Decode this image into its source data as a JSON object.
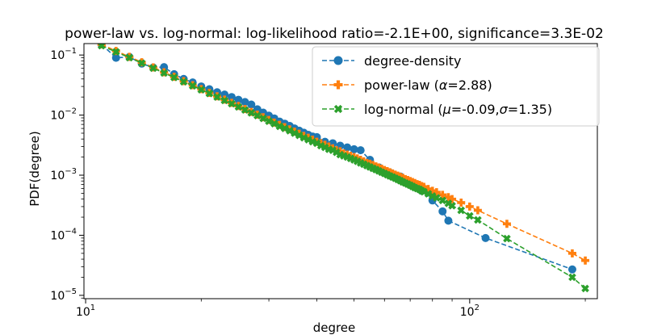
{
  "chart_data": {
    "type": "line",
    "title": "power-law vs. log-normal: log-likelihood ratio=-2.1E+00, significance=3.3E-02",
    "xlabel": "degree",
    "ylabel": "PDF(degree)",
    "xscale": "log",
    "yscale": "log",
    "xlim": [
      9.9,
      215
    ],
    "ylim": [
      8.8e-06,
      0.155
    ],
    "x_ticks": [
      {
        "value": 10,
        "base": "10",
        "exp": "1"
      },
      {
        "value": 100,
        "base": "10",
        "exp": "2"
      }
    ],
    "y_ticks": [
      {
        "value": 0.1,
        "base": "10",
        "exp": "−1"
      },
      {
        "value": 0.01,
        "base": "10",
        "exp": "−2"
      },
      {
        "value": 0.001,
        "base": "10",
        "exp": "−3"
      },
      {
        "value": 0.0001,
        "base": "10",
        "exp": "−4"
      },
      {
        "value": 1e-05,
        "base": "10",
        "exp": "−5"
      }
    ],
    "legend_position": "top-right",
    "series": [
      {
        "name": "degree-density",
        "legend_label": "degree-density",
        "color": "#1f77b4",
        "marker": "circle",
        "x": [
          11,
          12,
          13,
          14,
          15,
          16,
          17,
          18,
          19,
          20,
          21,
          22,
          23,
          24,
          25,
          26,
          27,
          28,
          29,
          30,
          31,
          32,
          33,
          34,
          35,
          36,
          37,
          38,
          39,
          40,
          42,
          44,
          46,
          48,
          50,
          52,
          55,
          58,
          62,
          66,
          70,
          75,
          80,
          85,
          88,
          110,
          185
        ],
        "y": [
          0.15,
          0.09,
          0.093,
          0.072,
          0.062,
          0.063,
          0.048,
          0.04,
          0.035,
          0.03,
          0.027,
          0.024,
          0.022,
          0.02,
          0.018,
          0.0165,
          0.015,
          0.0125,
          0.011,
          0.0098,
          0.0088,
          0.0078,
          0.0072,
          0.0066,
          0.006,
          0.0055,
          0.0051,
          0.0047,
          0.0044,
          0.0043,
          0.0036,
          0.0034,
          0.0031,
          0.0029,
          0.0027,
          0.0026,
          0.0018,
          0.00135,
          0.0011,
          0.00095,
          0.0007,
          0.00055,
          0.00038,
          0.00025,
          0.000175,
          9e-05,
          2.7e-05
        ]
      },
      {
        "name": "power-law",
        "legend_label": "power-law (",
        "legend_symbol": "α",
        "legend_value": "=2.88)",
        "color": "#ff7f0e",
        "marker": "plus",
        "x": [
          11,
          12,
          13,
          14,
          15,
          16,
          17,
          18,
          19,
          20,
          21,
          22,
          23,
          24,
          25,
          26,
          27,
          28,
          29,
          30,
          31,
          32,
          33,
          34,
          35,
          36,
          37,
          38,
          39,
          40,
          41,
          42,
          43,
          44,
          45,
          46,
          47,
          48,
          49,
          50,
          51,
          52,
          53,
          54,
          55,
          56,
          57,
          58,
          59,
          60,
          61,
          62,
          63,
          64,
          65,
          66,
          67,
          68,
          69,
          70,
          71,
          72,
          73,
          74,
          75,
          76,
          78,
          80,
          82,
          85,
          88,
          90,
          95,
          100,
          105,
          125,
          185,
          200
        ],
        "y": [
          0.15,
          0.117,
          0.0935,
          0.0757,
          0.0622,
          0.0517,
          0.0434,
          0.0368,
          0.0315,
          0.0271,
          0.0235,
          0.0206,
          0.0181,
          0.016,
          0.0142,
          0.0126,
          0.0113,
          0.0102,
          0.0092,
          0.0083,
          0.0075,
          0.0069,
          0.0063,
          0.0058,
          0.0053,
          0.0049,
          0.0045,
          0.0042,
          0.0039,
          0.0036,
          0.0034,
          0.0032,
          0.003,
          0.0028,
          0.0026,
          0.0025,
          0.0023,
          0.0022,
          0.0021,
          0.002,
          0.0019,
          0.0018,
          0.0017,
          0.0016,
          0.00155,
          0.00148,
          0.0014,
          0.00134,
          0.00128,
          0.00122,
          0.00117,
          0.00112,
          0.00107,
          0.00102,
          0.00098,
          0.00094,
          0.0009,
          0.00086,
          0.00083,
          0.0008,
          0.00077,
          0.00074,
          0.00071,
          0.00069,
          0.00066,
          0.00064,
          0.00059,
          0.00055,
          0.00052,
          0.00047,
          0.00043,
          0.0004,
          0.00035,
          0.0003,
          0.00026,
          0.000155,
          5e-05,
          3.8e-05
        ]
      },
      {
        "name": "log-normal",
        "legend_label": "log-normal (",
        "legend_symbol_1": "μ",
        "legend_value_1": "=-0.09,",
        "legend_symbol_2": "σ",
        "legend_value_2": "=1.35)",
        "color": "#2ca02c",
        "marker": "x",
        "x": [
          11,
          12,
          13,
          14,
          15,
          16,
          17,
          18,
          19,
          20,
          21,
          22,
          23,
          24,
          25,
          26,
          27,
          28,
          29,
          30,
          31,
          32,
          33,
          34,
          35,
          36,
          37,
          38,
          39,
          40,
          41,
          42,
          43,
          44,
          45,
          46,
          47,
          48,
          49,
          50,
          51,
          52,
          53,
          54,
          55,
          56,
          57,
          58,
          59,
          60,
          61,
          62,
          63,
          64,
          65,
          66,
          67,
          68,
          69,
          70,
          71,
          72,
          73,
          74,
          75,
          76,
          78,
          80,
          82,
          85,
          88,
          90,
          95,
          100,
          105,
          125,
          185,
          200
        ],
        "y": [
          0.143,
          0.113,
          0.0904,
          0.0733,
          0.0604,
          0.0503,
          0.0423,
          0.0359,
          0.0307,
          0.0264,
          0.0229,
          0.02,
          0.0175,
          0.0155,
          0.0137,
          0.0122,
          0.0109,
          0.0098,
          0.0088,
          0.0079,
          0.0072,
          0.0065,
          0.006,
          0.0055,
          0.005,
          0.0046,
          0.0042,
          0.0039,
          0.0036,
          0.0034,
          0.0031,
          0.0029,
          0.0027,
          0.0026,
          0.0024,
          0.0022,
          0.0021,
          0.002,
          0.0019,
          0.0018,
          0.0017,
          0.0016,
          0.00152,
          0.00144,
          0.00137,
          0.0013,
          0.00124,
          0.00118,
          0.00112,
          0.00107,
          0.00102,
          0.00097,
          0.00093,
          0.00089,
          0.00085,
          0.00081,
          0.00077,
          0.00074,
          0.00071,
          0.00068,
          0.00065,
          0.00062,
          0.0006,
          0.00058,
          0.00055,
          0.00053,
          0.00049,
          0.00045,
          0.00042,
          0.00038,
          0.00034,
          0.00031,
          0.00026,
          0.00021,
          0.00018,
          8.8e-05,
          2e-05,
          1.3e-05
        ]
      }
    ]
  }
}
